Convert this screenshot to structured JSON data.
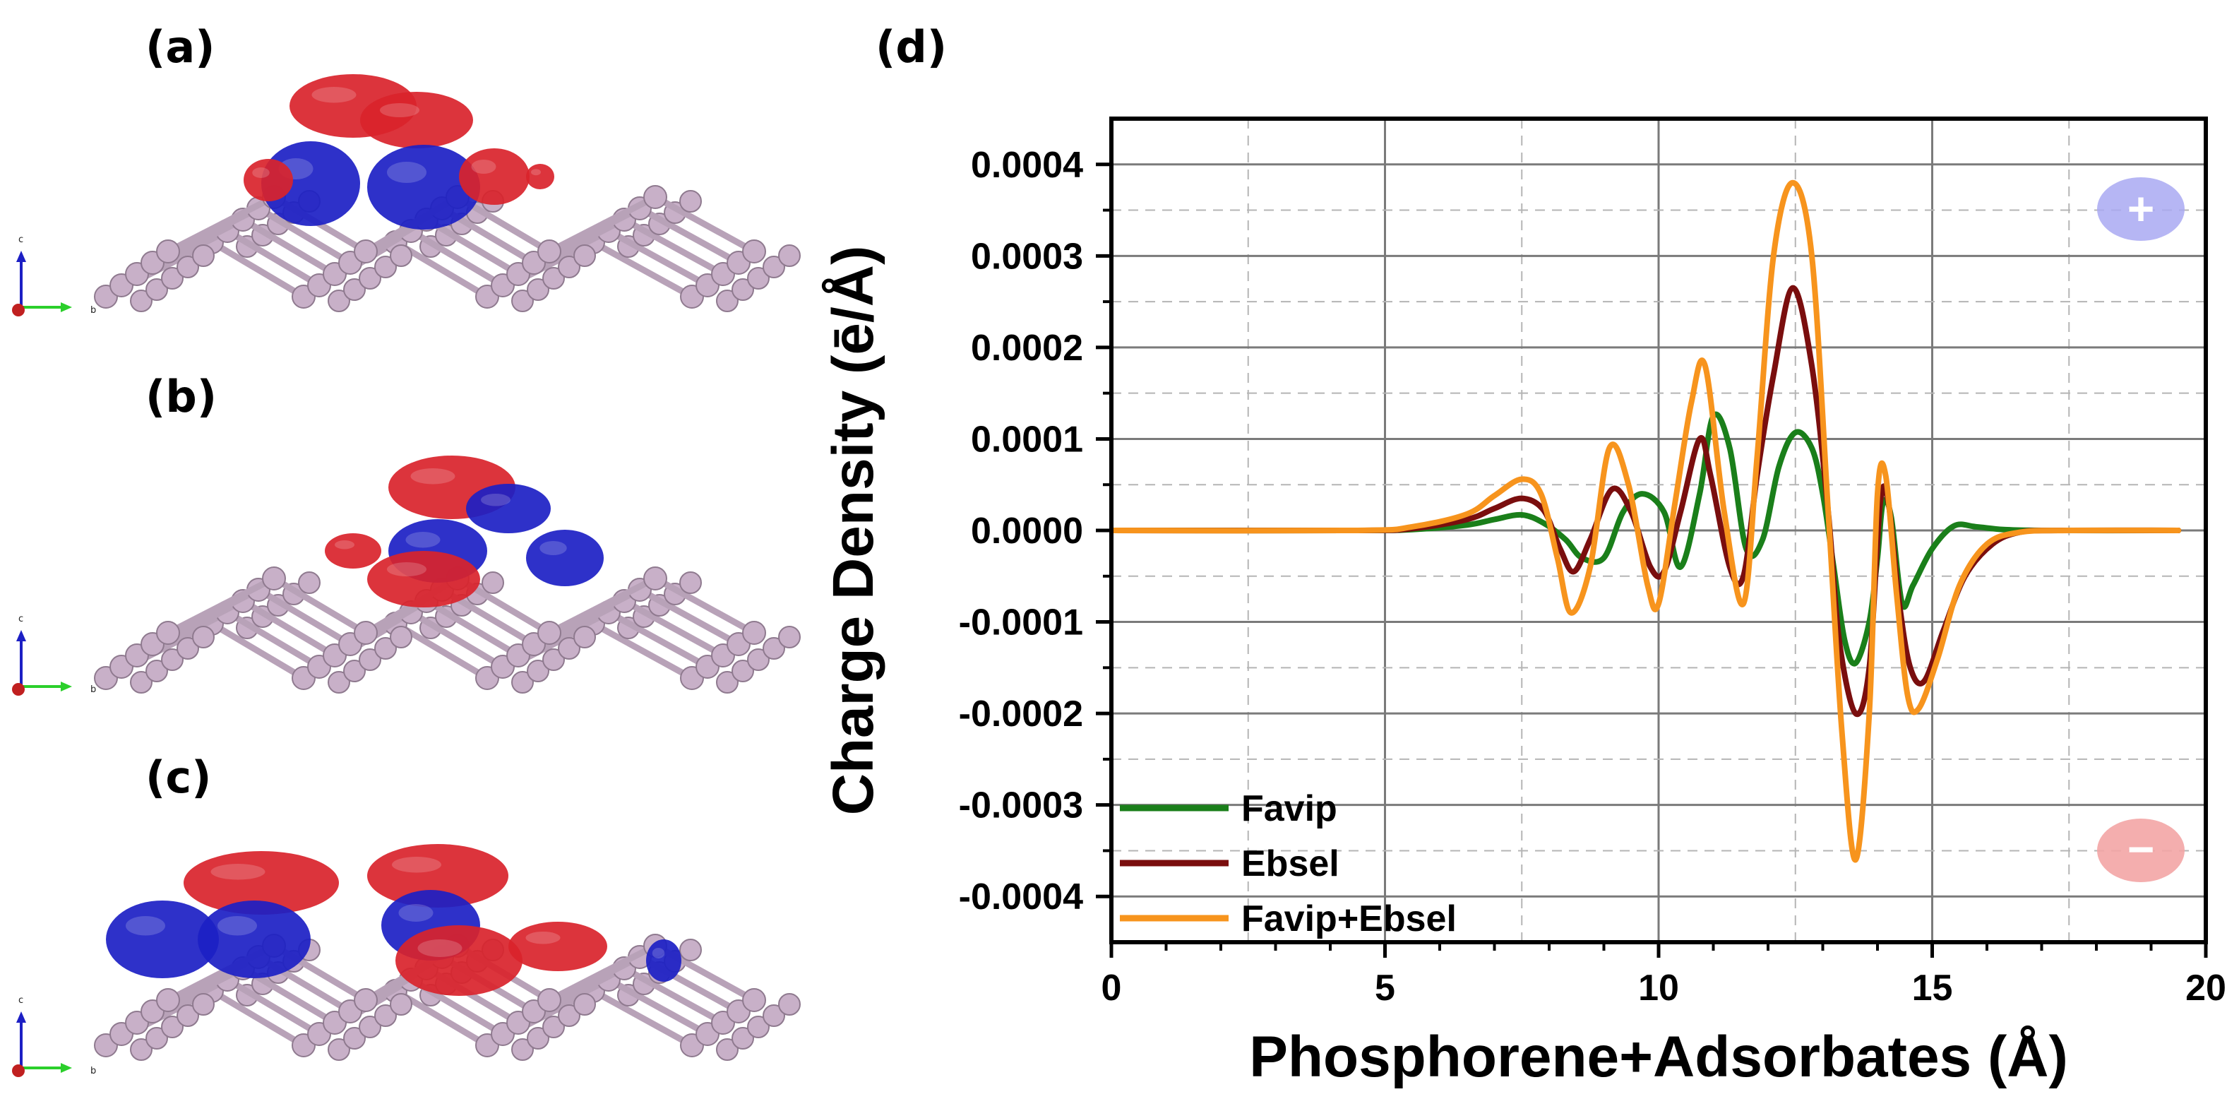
{
  "panels": {
    "a": "(a)",
    "b": "(b)",
    "c": "(c)",
    "d": "(d)"
  },
  "structure_axes": {
    "vertical": "c",
    "horizontal": "b"
  },
  "colors": {
    "accumulation": "#d9232b",
    "depletion": "#1c1fc4",
    "phosphorus_atom": "#c8b0c8",
    "bond": "#b8a2b8"
  },
  "chart_data": {
    "type": "line",
    "title": "",
    "xlabel": "Phosphorene+Adsorbates (Å)",
    "ylabel": "Charge Density (ē/Å)",
    "xlim": [
      0,
      20
    ],
    "ylim": [
      -0.00045,
      0.00045
    ],
    "x_ticks": [
      0,
      5,
      10,
      15,
      20
    ],
    "x_tick_labels": [
      "0",
      "5",
      "10",
      "15",
      "20"
    ],
    "y_ticks": [
      0.0004,
      0.0003,
      0.0002,
      0.0001,
      0.0,
      -0.0001,
      -0.0002,
      -0.0003,
      -0.0004
    ],
    "y_tick_labels": [
      "0.0004",
      "0.0003",
      "0.0002",
      "0.0001",
      "0.0000",
      "-0.0001",
      "-0.0002",
      "-0.0003",
      "-0.0004"
    ],
    "grid": true,
    "legend_position": "bottom-left",
    "markers": {
      "positive": "+",
      "negative": "−"
    },
    "series": [
      {
        "name": "Favip",
        "color": "#1a7f1a",
        "x": [
          0,
          4.5,
          5.5,
          6.5,
          7.0,
          7.5,
          7.9,
          8.3,
          8.6,
          9.0,
          9.35,
          9.7,
          10.1,
          10.4,
          10.75,
          11.0,
          11.3,
          11.6,
          11.9,
          12.2,
          12.5,
          12.8,
          13.0,
          13.2,
          13.4,
          13.6,
          13.85,
          14.0,
          14.1,
          14.25,
          14.45,
          14.65,
          15.0,
          15.4,
          15.8,
          16.3,
          17.0,
          19.5
        ],
        "y": [
          0,
          0,
          1e-06,
          6e-06,
          1.2e-05,
          1.7e-05,
          8e-06,
          -1e-05,
          -3e-05,
          -3e-05,
          2e-05,
          4e-05,
          2e-05,
          -4e-05,
          4e-05,
          0.000125,
          9e-05,
          -2e-05,
          -1e-05,
          7e-05,
          0.000107,
          9e-05,
          4e-05,
          -4e-05,
          -0.00012,
          -0.000145,
          -0.0001,
          -3e-05,
          3e-05,
          1.5e-05,
          -8e-05,
          -6e-05,
          -2e-05,
          5e-06,
          4e-06,
          1e-06,
          0,
          0
        ]
      },
      {
        "name": "Ebsel",
        "color": "#7a0e0e",
        "x": [
          0,
          4.5,
          5.5,
          6.5,
          7.0,
          7.5,
          7.9,
          8.2,
          8.45,
          8.75,
          9.15,
          9.5,
          9.85,
          10.1,
          10.4,
          10.75,
          10.95,
          11.3,
          11.55,
          11.8,
          12.1,
          12.45,
          12.8,
          13.1,
          13.3,
          13.6,
          13.85,
          14.05,
          14.2,
          14.4,
          14.6,
          14.85,
          15.2,
          15.6,
          16.1,
          16.6,
          17.3,
          19.5
        ],
        "y": [
          0,
          0,
          2e-06,
          1.2e-05,
          2.4e-05,
          3.5e-05,
          2.2e-05,
          -2e-05,
          -4.5e-05,
          -1e-05,
          4.5e-05,
          2e-05,
          -4e-05,
          -4.5e-05,
          2e-05,
          0.0001,
          6e-05,
          -4e-05,
          -5e-05,
          6e-05,
          0.00017,
          0.000265,
          0.00018,
          2e-05,
          -0.00012,
          -0.0002,
          -0.00015,
          3e-05,
          3e-05,
          -8e-05,
          -0.00015,
          -0.000165,
          -0.00011,
          -5e-05,
          -1.5e-05,
          -2e-06,
          0,
          0
        ]
      },
      {
        "name": "Favip+Ebsel",
        "color": "#f7941d",
        "x": [
          0,
          4.5,
          5.5,
          6.5,
          7.0,
          7.5,
          7.85,
          8.15,
          8.4,
          8.75,
          9.1,
          9.45,
          9.8,
          10.0,
          10.3,
          10.6,
          10.85,
          11.2,
          11.55,
          11.8,
          12.1,
          12.45,
          12.8,
          13.1,
          13.35,
          13.6,
          13.85,
          14.0,
          14.15,
          14.35,
          14.55,
          14.75,
          15.1,
          15.5,
          16.0,
          16.6,
          17.5,
          19.5
        ],
        "y": [
          0,
          0,
          4e-06,
          1.8e-05,
          3.8e-05,
          5.6e-05,
          4e-05,
          -3e-05,
          -9e-05,
          -4e-05,
          9e-05,
          5e-05,
          -6e-05,
          -8e-05,
          3e-05,
          0.00014,
          0.00018,
          2e-05,
          -8e-05,
          8e-05,
          0.0003,
          0.00038,
          0.0003,
          2e-05,
          -0.00022,
          -0.00036,
          -0.0002,
          4e-05,
          6e-05,
          -7e-05,
          -0.00018,
          -0.000195,
          -0.00014,
          -6e-05,
          -1.5e-05,
          -2e-06,
          0,
          0
        ]
      }
    ]
  }
}
